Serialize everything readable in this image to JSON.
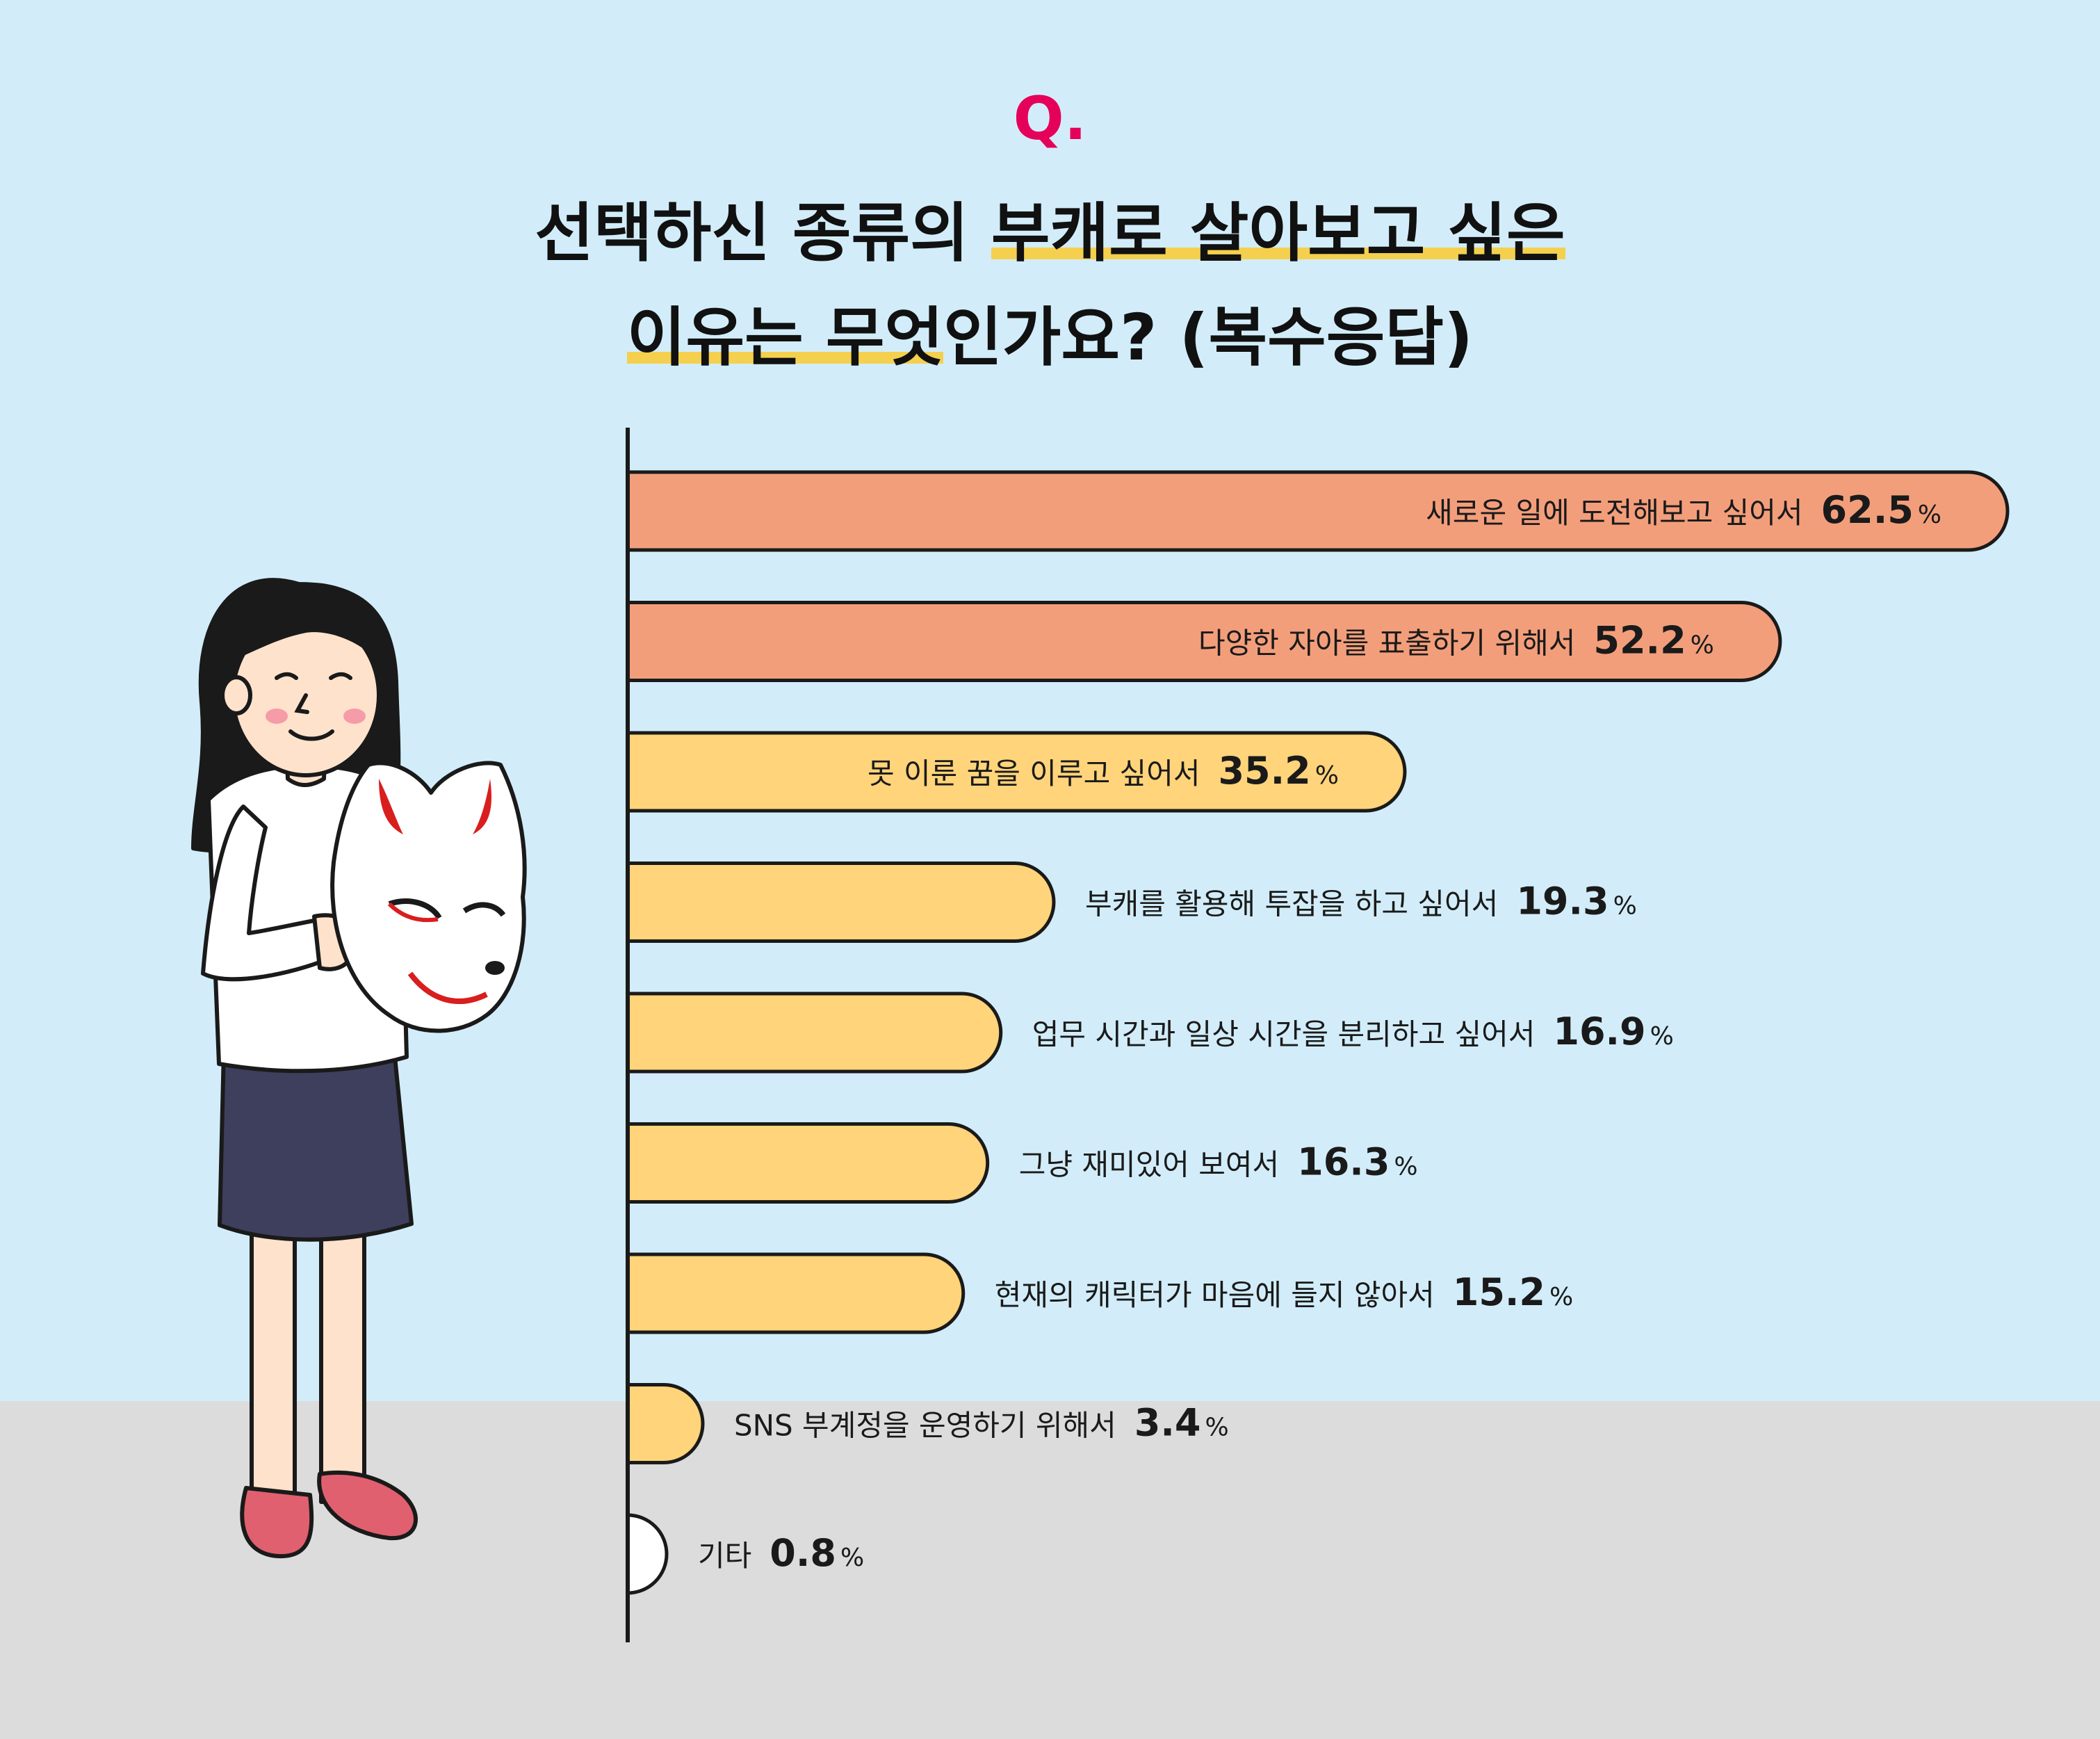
{
  "header": {
    "q_mark": "Q.",
    "title_line1": {
      "pre": "선택하신 종류의 ",
      "highlight": "부캐로 살아보고 싶은",
      "post": ""
    },
    "title_line2": {
      "pre": "",
      "highlight": "이유는 무엇",
      "post": "인가요? (복수응답)"
    }
  },
  "colors": {
    "background_top": "#D2EDF9",
    "background_bottom": "#DCDCDC",
    "accent_pink": "#E5005A",
    "highlight_yellow": "#F4D04E",
    "bar_top": "#F39E7B",
    "bar_other": "#FFD47A",
    "bar_last": "#FFFFFF",
    "outline": "#1A1A1A"
  },
  "chart_data": {
    "type": "bar",
    "orientation": "horizontal",
    "unit": "%",
    "categories": [
      "새로운 일에 도전해보고 싶어서",
      "다양한 자아를 표출하기 위해서",
      "못 이룬 꿈을 이루고 싶어서",
      "부캐를 활용해 투잡을 하고 싶어서",
      "업무 시간과 일상 시간을 분리하고 싶어서",
      "그냥 재미있어 보여서",
      "현재의 캐릭터가 마음에 들지 않아서",
      "SNS 부계정을 운영하기 위해서",
      "기타"
    ],
    "values": [
      62.5,
      52.2,
      35.2,
      19.3,
      16.9,
      16.3,
      15.2,
      3.4,
      0.8
    ],
    "value_labels": [
      "62.5",
      "52.2",
      "35.2",
      "19.3",
      "16.9",
      "16.3",
      "15.2",
      "3.4",
      "0.8"
    ],
    "xlim": [
      0,
      62.5
    ]
  }
}
